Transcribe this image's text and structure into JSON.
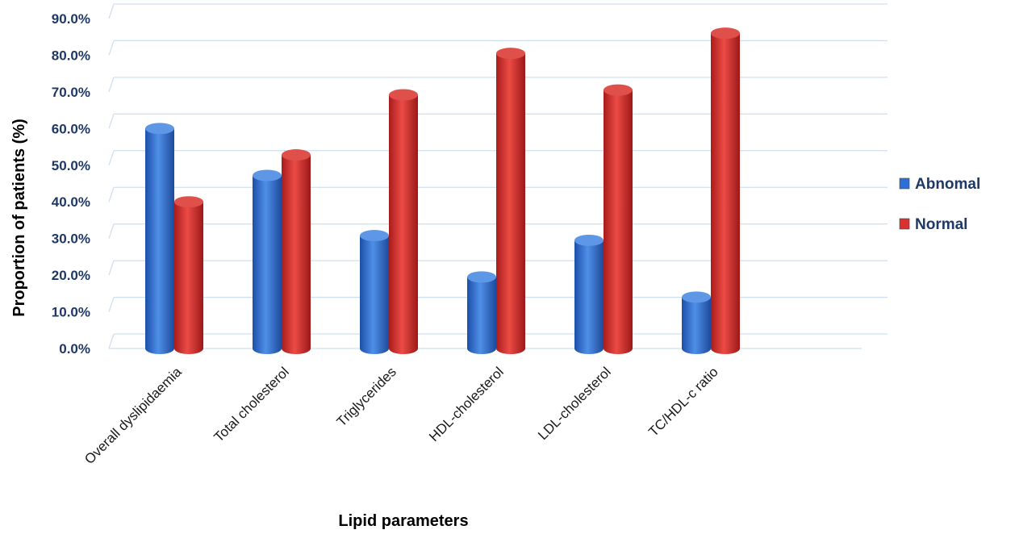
{
  "chart_data": {
    "type": "bar",
    "title": "",
    "xlabel": "Lipid parameters",
    "ylabel": "Proportion of patients (%)",
    "ylim": [
      0,
      90
    ],
    "yticks": [
      "0.0%",
      "10.0%",
      "20.0%",
      "30.0%",
      "40.0%",
      "50.0%",
      "60.0%",
      "70.0%",
      "80.0%",
      "90.0%"
    ],
    "categories": [
      "Overall dyslipidaemia",
      "Total cholesterol",
      "Triglycerides",
      "HDL-cholesterol",
      "LDL-cholesterol",
      "TC/HDL-c ratio"
    ],
    "series": [
      {
        "name": "Abnomal",
        "color": "#2e6fd6",
        "values": [
          60.0,
          47.2,
          30.8,
          19.5,
          29.5,
          14.0
        ]
      },
      {
        "name": "Normal",
        "color": "#d93030",
        "values": [
          40.0,
          52.8,
          69.2,
          80.5,
          70.5,
          86.0
        ]
      }
    ],
    "grid": true,
    "legend": "right"
  }
}
